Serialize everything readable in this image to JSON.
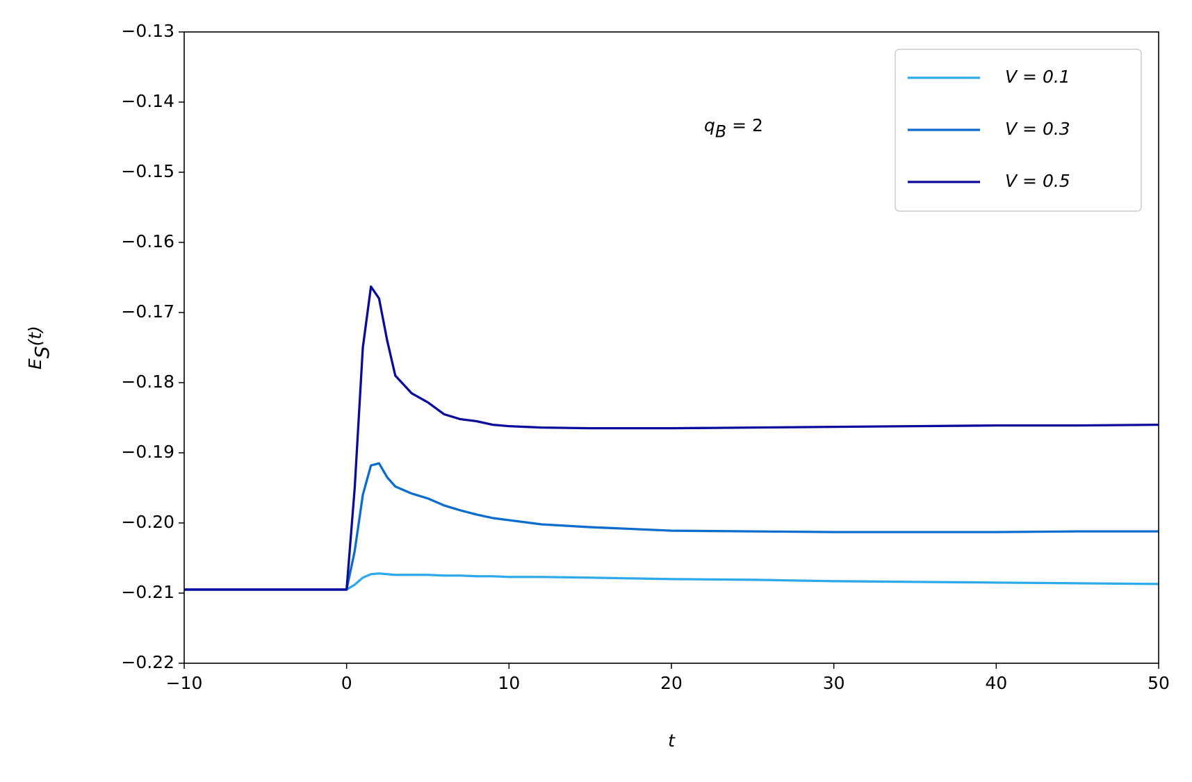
{
  "chart_data": {
    "type": "line",
    "xlabel": "t",
    "ylabel": {
      "main": "E",
      "sub": "S",
      "rest": "(t)"
    },
    "annotation": {
      "main": "q",
      "sub": "B",
      "rest": " = 2"
    },
    "x": [
      -10,
      0,
      0.5,
      1,
      1.5,
      2,
      2.5,
      3,
      4,
      5,
      6,
      7,
      8,
      9,
      10,
      12,
      15,
      20,
      25,
      30,
      35,
      40,
      45,
      50
    ],
    "series": [
      {
        "name": "V = 0.1",
        "color": "#2eaaea",
        "values": [
          -0.2095,
          -0.2095,
          -0.2088,
          -0.2078,
          -0.2073,
          -0.2072,
          -0.2073,
          -0.2074,
          -0.2074,
          -0.2074,
          -0.2075,
          -0.2075,
          -0.2076,
          -0.2076,
          -0.2077,
          -0.2077,
          -0.2078,
          -0.208,
          -0.2081,
          -0.2083,
          -0.2084,
          -0.2085,
          -0.2086,
          -0.2087
        ]
      },
      {
        "name": "V = 0.3",
        "color": "#0a6ccc",
        "values": [
          -0.2095,
          -0.2095,
          -0.204,
          -0.196,
          -0.1918,
          -0.1915,
          -0.1935,
          -0.1948,
          -0.1958,
          -0.1965,
          -0.1975,
          -0.1982,
          -0.1988,
          -0.1993,
          -0.1996,
          -0.2002,
          -0.2006,
          -0.2011,
          -0.2012,
          -0.2013,
          -0.2013,
          -0.2013,
          -0.2012,
          -0.2012
        ]
      },
      {
        "name": "V = 0.5",
        "color": "#0a0a9c",
        "values": [
          -0.2095,
          -0.2095,
          -0.195,
          -0.175,
          -0.1663,
          -0.168,
          -0.174,
          -0.179,
          -0.1815,
          -0.1828,
          -0.1845,
          -0.1852,
          -0.1855,
          -0.186,
          -0.1862,
          -0.1864,
          -0.1865,
          -0.1865,
          -0.1864,
          -0.1863,
          -0.1862,
          -0.1861,
          -0.1861,
          -0.186
        ]
      }
    ],
    "xlim": [
      -10,
      50
    ],
    "xticks": [
      {
        "value": -10,
        "label": "−10"
      },
      0,
      10,
      20,
      30,
      40,
      50
    ],
    "ylim": [
      -0.22,
      -0.13
    ],
    "yticks": [
      {
        "value": -0.22,
        "label": "−0.22"
      },
      {
        "value": -0.21,
        "label": "−0.21"
      },
      {
        "value": -0.2,
        "label": "−0.20"
      },
      {
        "value": -0.19,
        "label": "−0.19"
      },
      {
        "value": -0.18,
        "label": "−0.18"
      },
      {
        "value": -0.17,
        "label": "−0.17"
      },
      {
        "value": -0.16,
        "label": "−0.16"
      },
      {
        "value": -0.15,
        "label": "−0.15"
      },
      {
        "value": -0.14,
        "label": "−0.14"
      },
      {
        "value": -0.13,
        "label": "−0.13"
      }
    ],
    "legend": "upper right",
    "grid": false
  }
}
